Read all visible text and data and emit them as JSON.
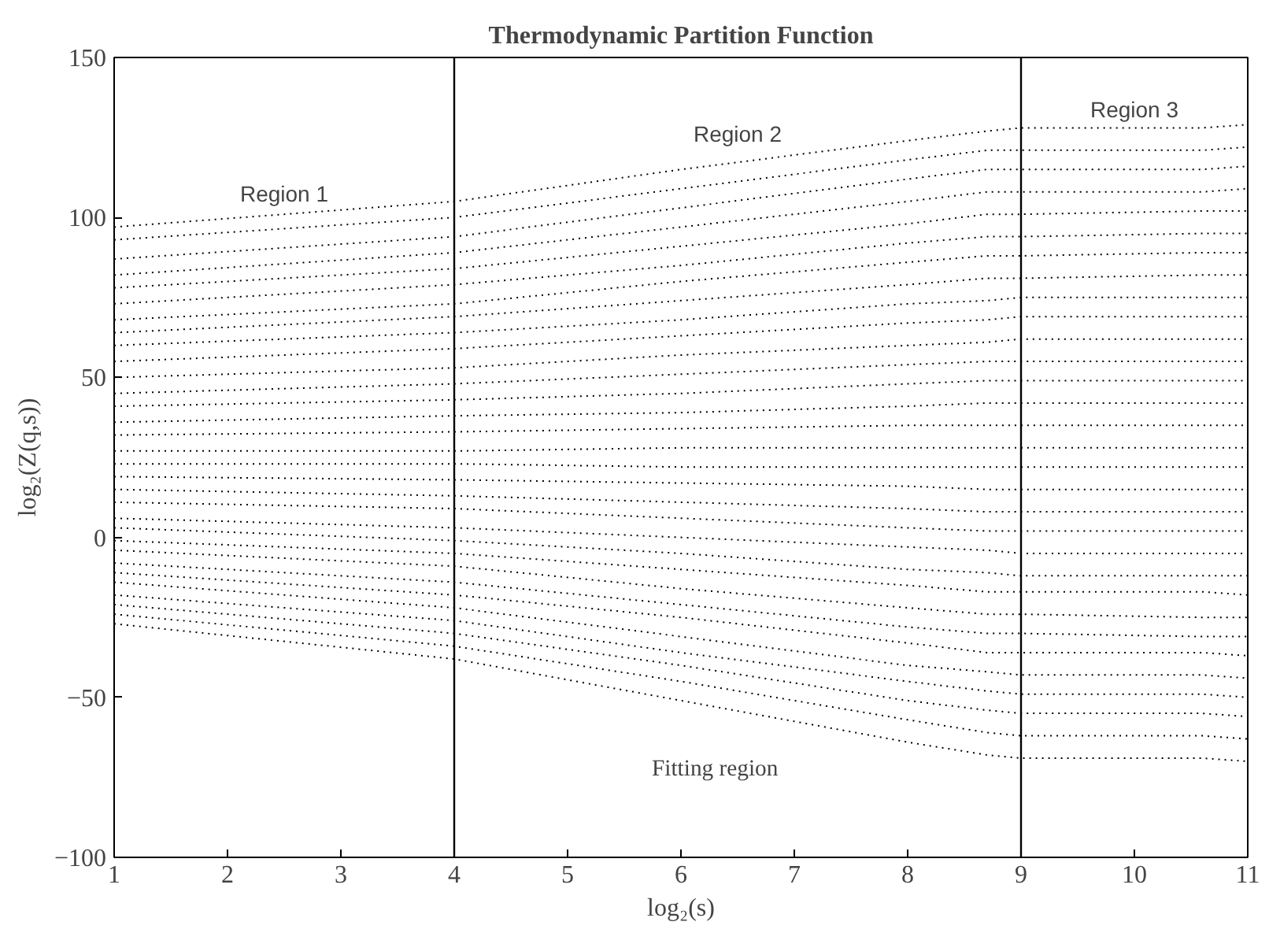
{
  "chart_data": {
    "type": "line",
    "title": "Thermodynamic Partition Function",
    "xlabel": "log₂(s)",
    "ylabel": "log₂(Z(q,s))",
    "x": [
      1,
      4,
      6,
      8,
      8.7,
      9,
      10.6,
      11
    ],
    "xlim": [
      1,
      11
    ],
    "xticks": [
      1,
      2,
      3,
      4,
      5,
      6,
      7,
      8,
      9,
      10,
      11
    ],
    "ylim": [
      -100,
      150
    ],
    "yticks": [
      -100,
      -50,
      0,
      50,
      100,
      150
    ],
    "grid": false,
    "marker": "none",
    "line_style": "dotted",
    "ref_lines": [
      {
        "axis": "x",
        "value": 4,
        "color": "#000000",
        "line_style": "solid"
      },
      {
        "axis": "x",
        "value": 9,
        "color": "#000000",
        "line_style": "solid"
      }
    ],
    "annotations": [
      "Region 1",
      "Region 2",
      "Region 3",
      "Fitting region"
    ],
    "series": [
      {
        "color": "#000000",
        "values": [
          97,
          105,
          115,
          124,
          127,
          128,
          128,
          129
        ]
      },
      {
        "color": "#000000",
        "values": [
          93,
          100,
          109,
          118,
          121,
          121,
          121,
          122
        ]
      },
      {
        "color": "#000000",
        "values": [
          87,
          94,
          103,
          112,
          115,
          115,
          115,
          116
        ]
      },
      {
        "color": "#000000",
        "values": [
          82,
          89,
          97,
          105,
          108,
          108,
          108,
          109
        ]
      },
      {
        "color": "#000000",
        "values": [
          78,
          84,
          91,
          98,
          101,
          101,
          102,
          102
        ]
      },
      {
        "color": "#000000",
        "values": [
          73,
          79,
          85,
          92,
          94,
          94,
          95,
          95
        ]
      },
      {
        "color": "#000000",
        "values": [
          68,
          73,
          80,
          86,
          88,
          88,
          89,
          89
        ]
      },
      {
        "color": "#000000",
        "values": [
          64,
          69,
          74,
          79,
          81,
          81,
          82,
          82
        ]
      },
      {
        "color": "#000000",
        "values": [
          60,
          64,
          68,
          73,
          74,
          75,
          75,
          75
        ]
      },
      {
        "color": "#000000",
        "values": [
          55,
          59,
          63,
          67,
          68,
          69,
          69,
          69
        ]
      },
      {
        "color": "#000000",
        "values": [
          50,
          53,
          57,
          60,
          61,
          62,
          62,
          62
        ]
      },
      {
        "color": "#000000",
        "values": [
          45,
          48,
          51,
          54,
          55,
          55,
          55,
          55
        ]
      },
      {
        "color": "#000000",
        "values": [
          41,
          43,
          45,
          48,
          49,
          49,
          49,
          49
        ]
      },
      {
        "color": "#000000",
        "values": [
          36,
          38,
          39,
          41,
          42,
          42,
          42,
          42
        ]
      },
      {
        "color": "#000000",
        "values": [
          32,
          33,
          34,
          35,
          35,
          35,
          35,
          35
        ]
      },
      {
        "color": "#000000",
        "values": [
          27,
          27,
          28,
          28,
          28,
          28,
          28,
          28
        ]
      },
      {
        "color": "#000000",
        "values": [
          23,
          23,
          22,
          22,
          22,
          22,
          22,
          22
        ]
      },
      {
        "color": "#000000",
        "values": [
          19,
          18,
          17,
          16,
          15,
          15,
          15,
          15
        ]
      },
      {
        "color": "#000000",
        "values": [
          15,
          13,
          11,
          9,
          8,
          8,
          8,
          8
        ]
      },
      {
        "color": "#000000",
        "values": [
          11,
          9,
          6,
          3,
          2,
          2,
          2,
          2
        ]
      },
      {
        "color": "#000000",
        "values": [
          6,
          3,
          0,
          -3,
          -4,
          -5,
          -5,
          -5
        ]
      },
      {
        "color": "#000000",
        "values": [
          3,
          -1,
          -5,
          -10,
          -11,
          -12,
          -12,
          -12
        ]
      },
      {
        "color": "#000000",
        "values": [
          -1,
          -5,
          -10,
          -15,
          -17,
          -17,
          -17,
          -18
        ]
      },
      {
        "color": "#000000",
        "values": [
          -4,
          -9,
          -16,
          -22,
          -24,
          -24,
          -25,
          -25
        ]
      },
      {
        "color": "#000000",
        "values": [
          -8,
          -14,
          -21,
          -28,
          -30,
          -30,
          -31,
          -31
        ]
      },
      {
        "color": "#000000",
        "values": [
          -11,
          -18,
          -25,
          -33,
          -36,
          -36,
          -36,
          -37
        ]
      },
      {
        "color": "#000000",
        "values": [
          -14,
          -22,
          -31,
          -40,
          -42,
          -43,
          -43,
          -44
        ]
      },
      {
        "color": "#000000",
        "values": [
          -18,
          -26,
          -36,
          -45,
          -48,
          -49,
          -49,
          -50
        ]
      },
      {
        "color": "#000000",
        "values": [
          -21,
          -30,
          -40,
          -51,
          -54,
          -55,
          -55,
          -56
        ]
      },
      {
        "color": "#000000",
        "values": [
          -24,
          -34,
          -45,
          -57,
          -61,
          -62,
          -62,
          -63
        ]
      },
      {
        "color": "#000000",
        "values": [
          -27,
          -38,
          -51,
          -64,
          -68,
          -69,
          -69,
          -70
        ]
      }
    ]
  }
}
